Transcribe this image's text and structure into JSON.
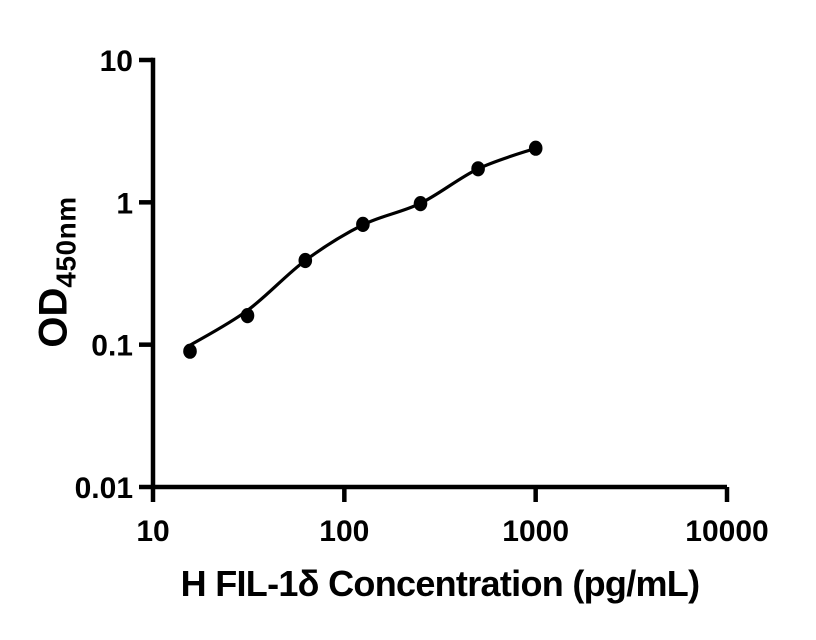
{
  "figure": {
    "background_color": "#ffffff",
    "foreground_color": "#000000"
  },
  "chart_data": {
    "type": "scatter",
    "title": "",
    "xlabel": "H FIL-1δ Concentration (pg/mL)",
    "ylabel": "OD450nm",
    "ylabel_main": "OD",
    "ylabel_sub": "450nm",
    "x_scale": "log",
    "y_scale": "log",
    "xlim": [
      10,
      10000
    ],
    "ylim": [
      0.01,
      10
    ],
    "grid": false,
    "legend_position": "none",
    "xticks": {
      "values": [
        10,
        100,
        1000,
        10000
      ],
      "labels": [
        "10",
        "100",
        "1000",
        "10000"
      ]
    },
    "yticks": {
      "values": [
        10,
        1,
        0.1,
        0.01
      ],
      "labels": [
        "10",
        "1",
        "0.1",
        "0.01"
      ]
    },
    "series": [
      {
        "name": "standard-points",
        "type": "scatter",
        "marker": "filled-circle",
        "color": "#000000",
        "x": [
          15.6,
          31.2,
          62.5,
          125,
          250,
          500,
          1000
        ],
        "y": [
          0.09,
          0.16,
          0.39,
          0.7,
          0.98,
          1.72,
          2.4
        ]
      },
      {
        "name": "fitted-curve",
        "type": "line",
        "color": "#000000",
        "x": [
          15.6,
          31.2,
          62.5,
          125,
          250,
          500,
          1000
        ],
        "y": [
          0.099,
          0.174,
          0.39,
          0.695,
          0.985,
          1.72,
          2.4
        ]
      }
    ]
  }
}
